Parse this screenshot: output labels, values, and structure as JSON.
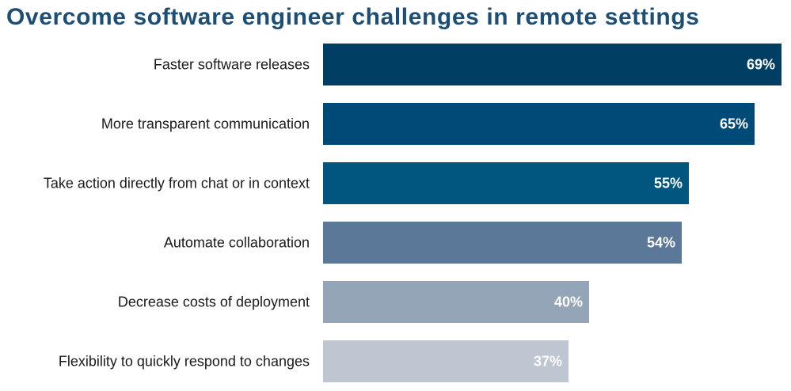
{
  "title": "Overcome software engineer challenges in remote settings",
  "chart_data": {
    "type": "bar",
    "orientation": "horizontal",
    "title": "Overcome software engineer challenges in remote settings",
    "categories": [
      "Faster software releases",
      "More transparent communication",
      "Take action directly from chat or in context",
      "Automate collaboration",
      "Decrease costs of deployment",
      "Flexibility to quickly respond to changes"
    ],
    "values": [
      69,
      65,
      55,
      54,
      40,
      37
    ],
    "value_labels": [
      "69%",
      "65%",
      "55%",
      "54%",
      "40%",
      "37%"
    ],
    "unit": "%",
    "xlim": [
      0,
      69
    ],
    "grid": false,
    "legend": "none",
    "bar_colors": [
      "#003f63",
      "#004a78",
      "#00567f",
      "#5b7898",
      "#94a5b7",
      "#bec7d1"
    ]
  }
}
